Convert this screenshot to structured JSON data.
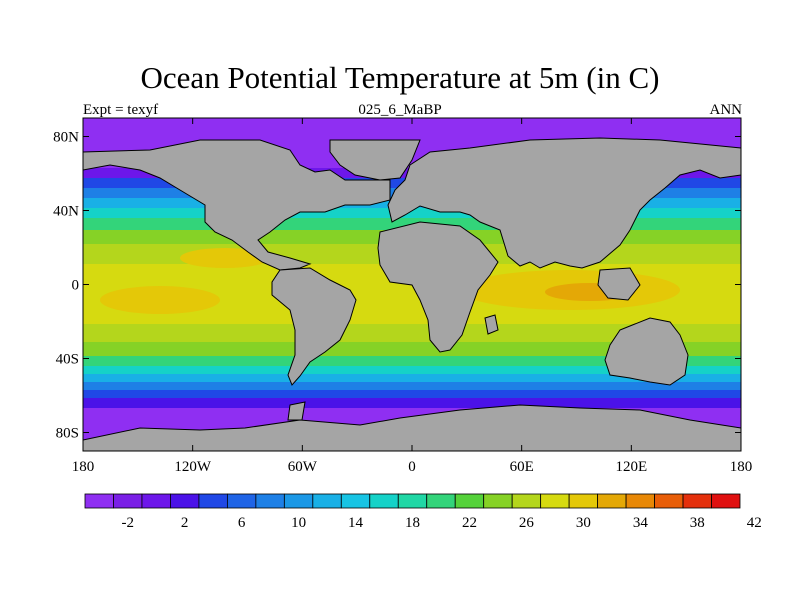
{
  "title": "Ocean Potential Temperature at 5m (in C)",
  "left_string": "Expt = texyf",
  "center_string": "025_6_MaBP",
  "right_string": "ANN",
  "colors": {
    "land": "#a5a5a5",
    "palette": [
      "#8f2ff2",
      "#7a1fe6",
      "#6d17ea",
      "#4b12e8",
      "#2048e6",
      "#1f64e6",
      "#1e80e6",
      "#1b98e6",
      "#19b0e6",
      "#17c4e4",
      "#15d2c8",
      "#20d7a5",
      "#33d47a",
      "#55d23a",
      "#86d226",
      "#b4d61c",
      "#d6da10",
      "#e4c808",
      "#e4a806",
      "#e88806",
      "#e85e08",
      "#e4300c",
      "#e01010"
    ]
  },
  "chart_data": {
    "type": "map",
    "projection": "cylindrical-equidistant",
    "field": "Ocean potential temperature",
    "level": "5m",
    "units": "C",
    "x_ticks": [
      "180",
      "120W",
      "60W",
      "0",
      "60E",
      "120E",
      "180"
    ],
    "y_ticks": [
      "80N",
      "40N",
      "0",
      "40S",
      "80S"
    ],
    "colorbar_labels": [
      "-2",
      "2",
      "6",
      "10",
      "14",
      "18",
      "22",
      "26",
      "30",
      "34",
      "38",
      "42"
    ],
    "colorbar_min": -4,
    "colorbar_step": 2,
    "colorbar_bins": 23
  }
}
